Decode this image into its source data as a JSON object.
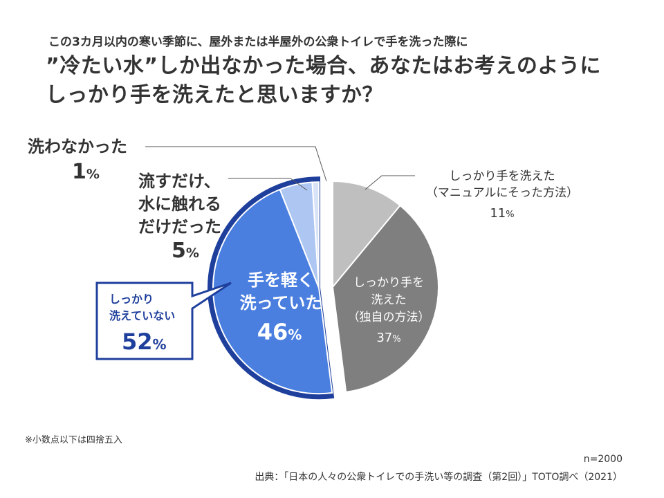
{
  "header": {
    "subtitle": "この3カ月以内の寒い季節に、屋外または半屋外の公衆トイレで手を洗った際に",
    "title_line1": "”冷たい水”しか出なかった場合、あなたはお考えのように",
    "title_line2": "しっかり手を洗えたと思いますか？"
  },
  "chart_data": {
    "type": "pie",
    "start": "12 o'clock",
    "direction": "clockwise",
    "categories": [
      "しっかり手を洗えた（マニュアルにそった方法）",
      "しっかり手を洗えた（独自の方法）",
      "手を軽く洗っていた",
      "流すだけ、水に触れるだけだった",
      "洗わなかった"
    ],
    "values": [
      11,
      37,
      46,
      5,
      1
    ],
    "unit": "%",
    "colors": [
      "#bfbfbf",
      "#7f7f7f",
      "#4a7fe0",
      "#adc6f2",
      "#d8e3f8"
    ],
    "group": {
      "label_line1": "しっかり",
      "label_line2": "洗えていない",
      "value": "52",
      "members": [
        2,
        3,
        4
      ],
      "outline_color": "#1f3f9c"
    },
    "labels": [
      {
        "lines": [
          "しっかり手を洗えた",
          "（マニュアルにそった方法）"
        ],
        "value": "11"
      },
      {
        "lines": [
          "しっかり手を",
          "洗えた",
          "（独自の方法）"
        ],
        "value": "37"
      },
      {
        "lines": [
          "手を軽く",
          "洗っていた"
        ],
        "value": "46"
      },
      {
        "lines": [
          "流すだけ、",
          "水に触れる",
          "だけだった"
        ],
        "value": "5"
      },
      {
        "lines": [
          "洗わなかった"
        ],
        "value": "1"
      }
    ]
  },
  "footer": {
    "note": "※小数点以下は四捨五入",
    "n": "n=2000",
    "source": "出典：「日本の人々の公衆トイレでの手洗い等の調査（第2回）」TOTO調べ（2021）"
  }
}
